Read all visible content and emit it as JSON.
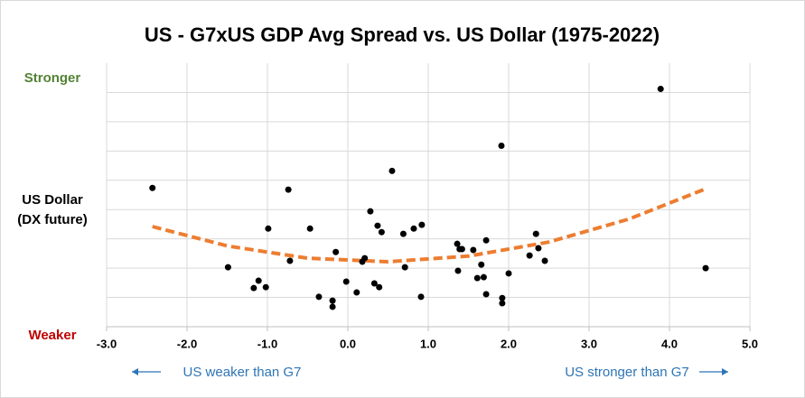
{
  "chart_data": {
    "type": "scatter",
    "title": "US - G7xUS GDP Avg Spread vs. US Dollar (1975-2022)",
    "y_label_top": "Stronger",
    "y_label_top_color": "#548235",
    "y_label": [
      "US Dollar",
      "(DX future)"
    ],
    "y_label_bottom": "Weaker",
    "y_label_bottom_color": "#c00000",
    "x_note_left": "US weaker than G7",
    "x_note_right": "US stronger than G7",
    "x_note_color": "#2e75b6",
    "xlim": [
      -3,
      5
    ],
    "xticks": [
      {
        "value": -3,
        "label": "-3.0"
      },
      {
        "value": -2,
        "label": "-2.0"
      },
      {
        "value": -1,
        "label": "-1.0"
      },
      {
        "value": 0,
        "label": "0.0"
      },
      {
        "value": 1,
        "label": "1.0"
      },
      {
        "value": 2,
        "label": "2.0"
      },
      {
        "value": 3,
        "label": "3.0"
      },
      {
        "value": 4,
        "label": "4.0"
      },
      {
        "value": 5,
        "label": "5.0"
      }
    ],
    "ylim": [
      0,
      9
    ],
    "ygrid": [
      1,
      2,
      3,
      4,
      5,
      6,
      7,
      8
    ],
    "grid": true,
    "series": [
      {
        "color": "#000000",
        "x": [
          -2.43,
          -1.49,
          -1.17,
          -1.11,
          -1.02,
          -0.99,
          -0.74,
          -0.72,
          -0.47,
          -0.36,
          -0.19,
          -0.19,
          -0.15,
          -0.02,
          0.11,
          0.18,
          0.21,
          0.28,
          0.33,
          0.37,
          0.39,
          0.42,
          0.55,
          0.69,
          0.71,
          0.82,
          0.91,
          0.92,
          1.36,
          1.37,
          1.39,
          1.42,
          1.56,
          1.61,
          1.66,
          1.69,
          1.72,
          1.72,
          1.91,
          1.92,
          1.92,
          2.0,
          2.26,
          2.34,
          2.37,
          2.45,
          3.89,
          4.45
        ],
        "y": [
          4.74,
          2.03,
          1.32,
          1.57,
          1.35,
          3.35,
          4.68,
          2.25,
          3.35,
          1.02,
          0.89,
          0.68,
          2.55,
          1.54,
          1.17,
          2.22,
          2.34,
          3.94,
          1.48,
          3.45,
          1.35,
          3.23,
          5.32,
          3.17,
          2.03,
          3.35,
          1.02,
          3.48,
          2.83,
          1.91,
          2.65,
          2.65,
          2.62,
          1.66,
          2.12,
          1.69,
          2.95,
          1.11,
          6.18,
          0.98,
          0.8,
          1.82,
          2.43,
          3.17,
          2.68,
          2.25,
          8.12,
          2.0
        ]
      }
    ],
    "trendline": {
      "color": "#ed7d31",
      "x": [
        -2.43,
        -1.5,
        -0.5,
        0.5,
        1.5,
        2.5,
        3.5,
        4.45
      ],
      "y": [
        3.42,
        2.76,
        2.34,
        2.22,
        2.41,
        2.89,
        3.68,
        4.71
      ]
    }
  }
}
